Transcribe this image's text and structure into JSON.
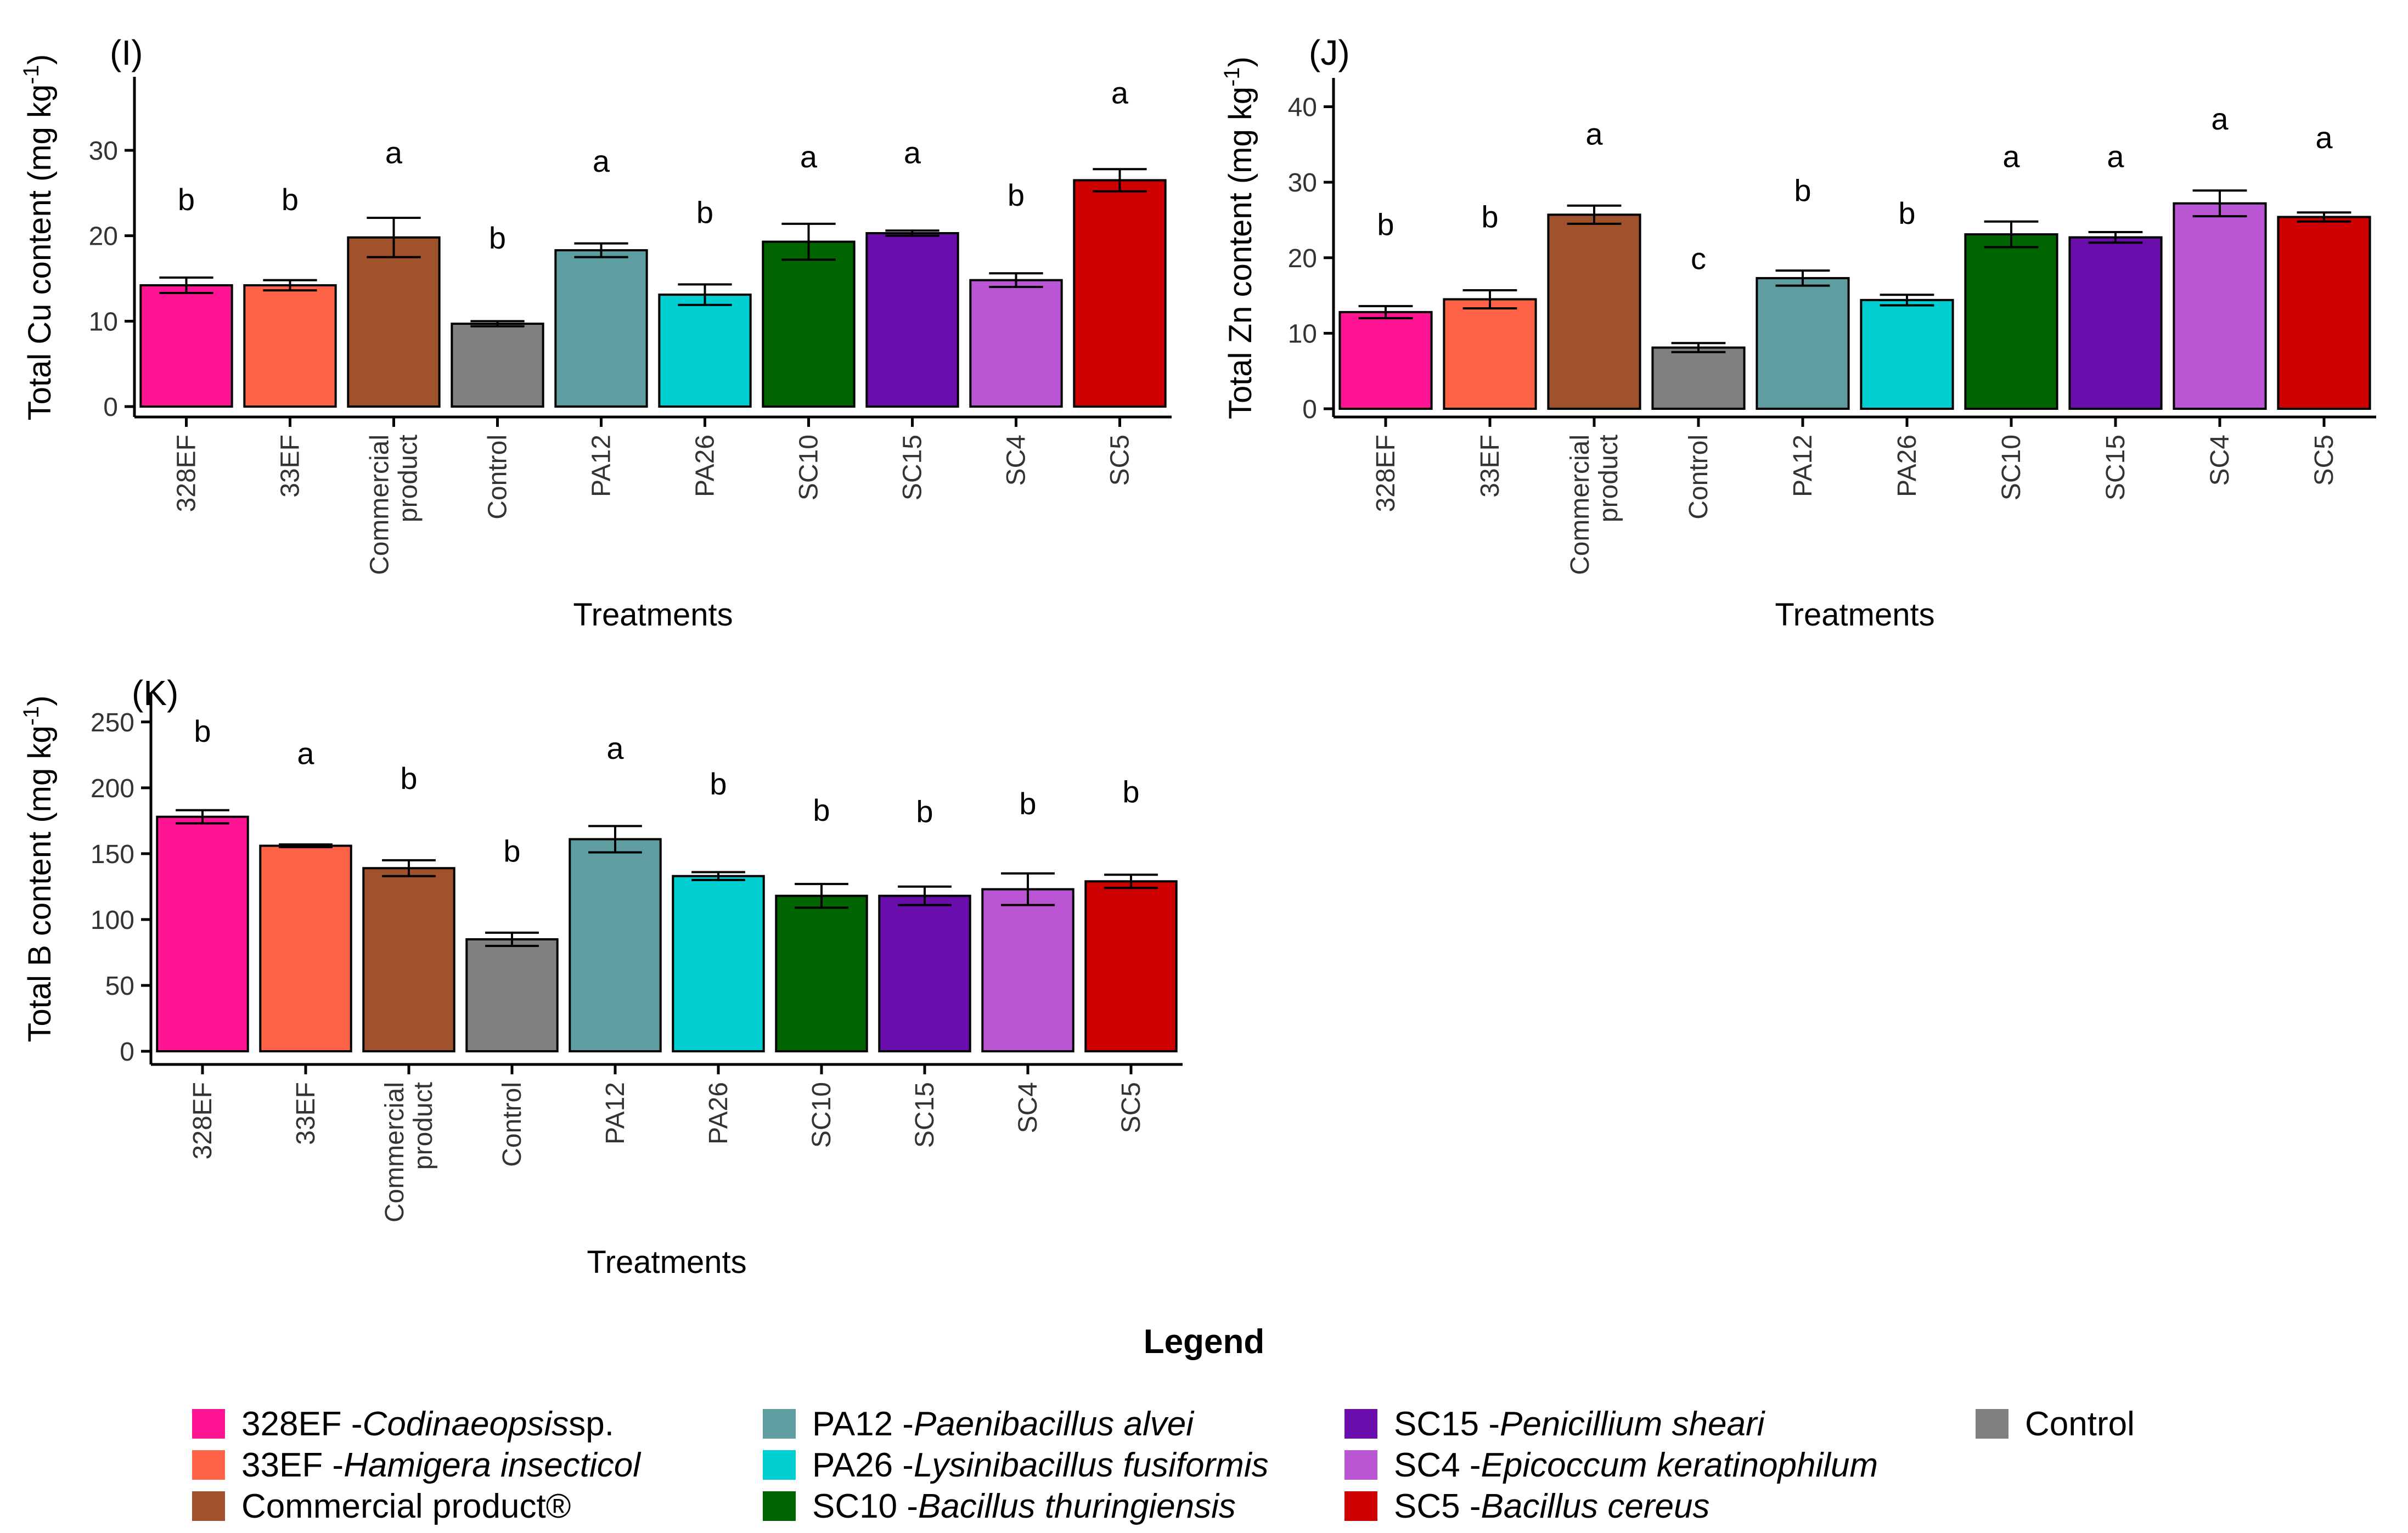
{
  "chart_data": [
    {
      "type": "bar",
      "panel_label": "(I)",
      "ylabel_main": "Total Cu content (mg kg",
      "ylabel_sup": "-1",
      "ylabel_close": ")",
      "xlabel": "Treatments",
      "ylim": [
        0,
        37
      ],
      "yticks": [
        0,
        10,
        20,
        30
      ],
      "categories": [
        [
          "328EF"
        ],
        [
          "33EF"
        ],
        [
          "Commercial",
          "product"
        ],
        [
          "Control"
        ],
        [
          "PA12"
        ],
        [
          "PA26"
        ],
        [
          "SC10"
        ],
        [
          "SC15"
        ],
        [
          "SC4"
        ],
        [
          "SC5"
        ]
      ],
      "values": [
        14.2,
        14.2,
        19.8,
        9.7,
        18.3,
        13.1,
        19.3,
        20.3,
        14.8,
        26.5
      ],
      "errors": [
        0.9,
        0.6,
        2.3,
        0.3,
        0.8,
        1.2,
        2.1,
        0.3,
        0.8,
        1.3
      ],
      "letters": [
        "b",
        "b",
        "a",
        "b",
        "a",
        "b",
        "a",
        "a",
        "b",
        "a"
      ],
      "letter_values": [
        23,
        23,
        28.5,
        18.5,
        27.5,
        21.5,
        28,
        28.5,
        23.5,
        35.5
      ]
    },
    {
      "type": "bar",
      "panel_label": "(J)",
      "ylabel_main": "Total Zn content (mg kg",
      "ylabel_sup": "-1",
      "ylabel_close": ")",
      "xlabel": "Treatments",
      "ylim": [
        0,
        42
      ],
      "yticks": [
        0,
        10,
        20,
        30,
        40
      ],
      "categories": [
        [
          "328EF"
        ],
        [
          "33EF"
        ],
        [
          "Commercial",
          "product"
        ],
        [
          "Control"
        ],
        [
          "PA12"
        ],
        [
          "PA26"
        ],
        [
          "SC10"
        ],
        [
          "SC15"
        ],
        [
          "SC4"
        ],
        [
          "SC5"
        ]
      ],
      "values": [
        12.8,
        14.5,
        25.7,
        8.1,
        17.3,
        14.4,
        23.1,
        22.7,
        27.2,
        25.4
      ],
      "errors": [
        0.8,
        1.2,
        1.2,
        0.6,
        1.0,
        0.7,
        1.7,
        0.7,
        1.7,
        0.6
      ],
      "letters": [
        "b",
        "b",
        "a",
        "c",
        "b",
        "b",
        "a",
        "a",
        "a",
        "a"
      ],
      "letter_values": [
        23,
        24,
        35,
        18.5,
        27.5,
        24.5,
        32,
        32,
        37,
        34.5
      ]
    },
    {
      "type": "bar",
      "panel_label": "(K)",
      "ylabel_main": "Total B content (mg kg",
      "ylabel_sup": "-1",
      "ylabel_close": ")",
      "xlabel": "Treatments",
      "ylim": [
        0,
        262
      ],
      "yticks": [
        0,
        50,
        100,
        150,
        200,
        250
      ],
      "categories": [
        [
          "328EF"
        ],
        [
          "33EF"
        ],
        [
          "Commercial",
          "product"
        ],
        [
          "Control"
        ],
        [
          "PA12"
        ],
        [
          "PA26"
        ],
        [
          "SC10"
        ],
        [
          "SC15"
        ],
        [
          "SC4"
        ],
        [
          "SC5"
        ]
      ],
      "values": [
        178,
        156,
        139,
        85,
        161,
        133,
        118,
        118,
        123,
        129
      ],
      "errors": [
        5,
        1,
        6,
        5,
        10,
        3,
        9,
        7,
        12,
        5
      ],
      "letters": [
        "b",
        "a",
        "b",
        "b",
        "a",
        "b",
        "b",
        "b",
        "b",
        "b"
      ],
      "letter_values": [
        235,
        218,
        199,
        144,
        222,
        195,
        175,
        174,
        180,
        189
      ]
    }
  ],
  "bar_colors": [
    "#FF1493",
    "#FF6347",
    "#A0522D",
    "#808080",
    "#5F9EA0",
    "#00CED1",
    "#006400",
    "#6A0DAD",
    "#BA55D3",
    "#CC0000"
  ],
  "legend": {
    "title": "Legend",
    "items": [
      {
        "code": "328EF - ",
        "species": "Codinaeopsis",
        "suffix": " sp.",
        "color": "#FF1493"
      },
      {
        "code": "33EF - ",
        "species": "Hamigera insecticol",
        "suffix": "",
        "color": "#FF6347"
      },
      {
        "code": "Commercial product®",
        "species": "",
        "suffix": "",
        "color": "#A0522D"
      },
      {
        "code": "PA12 - ",
        "species": "Paenibacillus alvei",
        "suffix": "",
        "color": "#5F9EA0"
      },
      {
        "code": "PA26 - ",
        "species": "Lysinibacillus fusiformis",
        "suffix": "",
        "color": "#00CED1"
      },
      {
        "code": "SC10 - ",
        "species": "Bacillus thuringiensis",
        "suffix": "",
        "color": "#006400"
      },
      {
        "code": "SC15 - ",
        "species": "Penicillium sheari",
        "suffix": "",
        "color": "#6A0DAD"
      },
      {
        "code": "SC4 - ",
        "species": "Epicoccum keratinophilum",
        "suffix": "",
        "color": "#BA55D3"
      },
      {
        "code": "SC5 - ",
        "species": "Bacillus cereus",
        "suffix": "",
        "color": "#CC0000"
      },
      {
        "code": "Control",
        "species": "",
        "suffix": "",
        "color": "#808080"
      }
    ]
  }
}
